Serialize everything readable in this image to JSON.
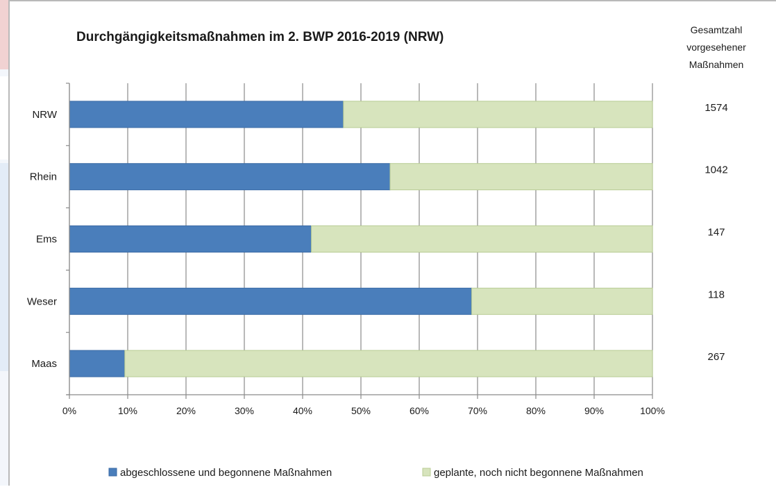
{
  "chart_data": {
    "type": "bar",
    "orientation": "horizontal",
    "stacked": true,
    "normalized": true,
    "title": "Durchgängigkeitsmaßnahmen im 2. BWP 2016-2019 (NRW)",
    "categories": [
      "NRW",
      "Rhein",
      "Ems",
      "Weser",
      "Maas"
    ],
    "series": [
      {
        "name": "abgeschlossene und begonnene Maßnahmen",
        "color": "#4a7ebb",
        "values": [
          47,
          55,
          41.5,
          69,
          9.5
        ]
      },
      {
        "name": "geplante, noch nicht begonnene Maßnahmen",
        "color": "#d7e4bd",
        "values": [
          53,
          45,
          58.5,
          31,
          90.5
        ]
      }
    ],
    "xlim": [
      0,
      100
    ],
    "x_ticks": [
      "0%",
      "10%",
      "20%",
      "30%",
      "40%",
      "50%",
      "60%",
      "70%",
      "80%",
      "90%",
      "100%"
    ],
    "grid": true,
    "legend_position": "bottom",
    "totals_header": [
      "Gesamtzahl",
      "vorgesehener",
      "Maßnahmen"
    ],
    "totals": [
      "1574",
      "1042",
      "147",
      "118",
      "267"
    ]
  }
}
